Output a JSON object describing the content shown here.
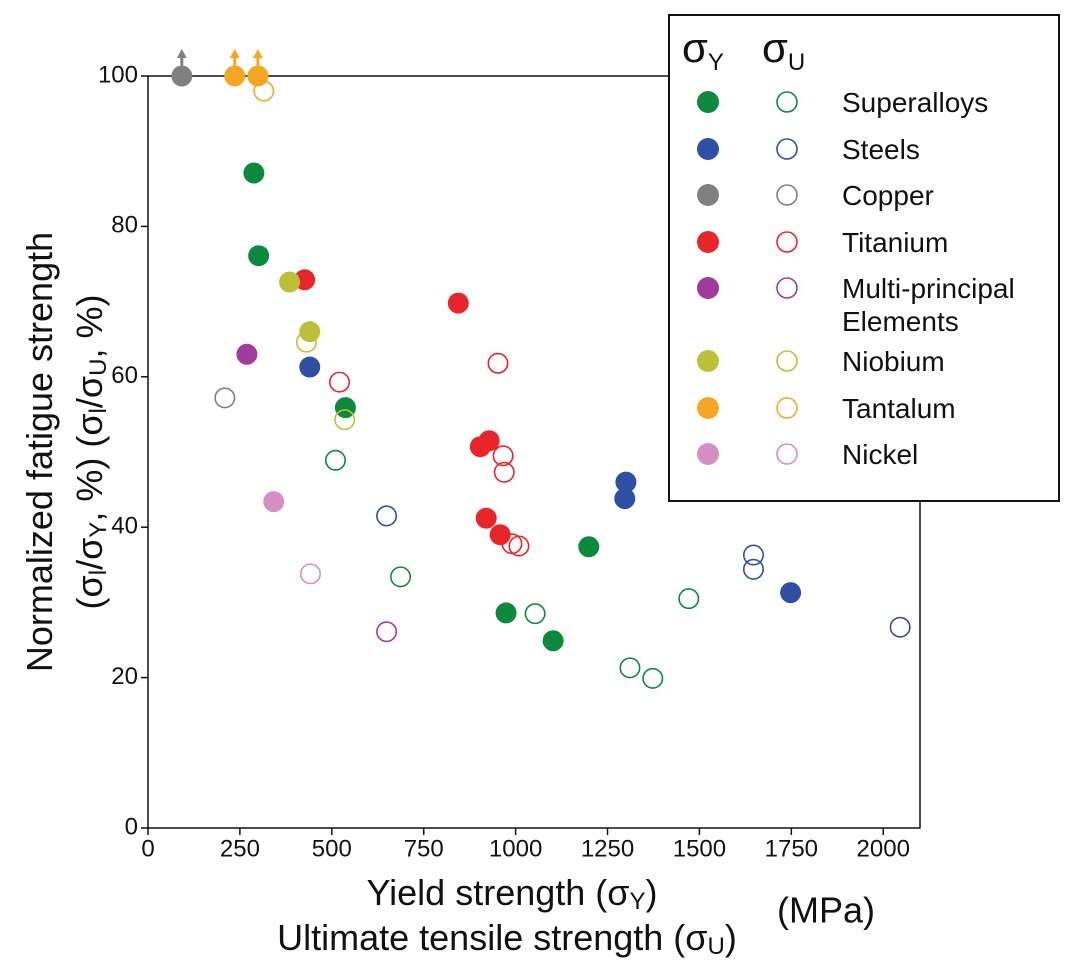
{
  "chart_data": {
    "type": "scatter",
    "x_label": [
      [
        "Yield strength (σ",
        "Y",
        ")"
      ],
      [
        "Ultimate tensile strength (σ",
        "U",
        ")"
      ]
    ],
    "x_unit": "(MPa)",
    "y_label": [
      [
        "Normalized fatigue strength"
      ],
      [
        "(σ",
        "l",
        "/σ",
        "Y",
        ", %) (σ",
        "l",
        "/σ",
        "U",
        ", %)"
      ]
    ],
    "legend_headers": [
      [
        "σ",
        "Y"
      ],
      [
        "σ",
        "U"
      ]
    ],
    "xlim": [
      0,
      2100
    ],
    "ylim": [
      0,
      100
    ],
    "xticks": [
      0,
      250,
      500,
      750,
      1000,
      1250,
      1500,
      1750,
      2000
    ],
    "yticks": [
      0,
      20,
      40,
      60,
      80,
      100
    ],
    "grid": false,
    "legend_position": "upper right",
    "series": [
      {
        "name": "Superalloys",
        "color": "#0b8a3e",
        "yield": {
          "x": [
            288,
            301,
            537,
            974,
            1102,
            1199
          ],
          "values": [
            87.1,
            76.1,
            55.9,
            28.6,
            24.9,
            37.4
          ]
        },
        "uts": {
          "x": [
            510,
            687,
            1053,
            1311,
            1373,
            1471
          ],
          "values": [
            48.9,
            33.4,
            28.5,
            21.3,
            19.9,
            30.5
          ]
        }
      },
      {
        "name": "Steels",
        "color": "#2e4fa3",
        "yield": {
          "x": [
            440,
            1300,
            1297,
            1748
          ],
          "values": [
            61.3,
            46.0,
            43.8,
            31.3
          ]
        },
        "uts": {
          "x": [
            649,
            1647,
            1647,
            2046
          ],
          "values": [
            41.5,
            36.3,
            34.4,
            26.7
          ]
        }
      },
      {
        "name": "Copper",
        "color": "#808080",
        "yield": {
          "x": [
            92
          ],
          "values": [
            100
          ]
        },
        "uts": {
          "x": [
            209
          ],
          "values": [
            57.2
          ]
        }
      },
      {
        "name": "Titanium",
        "color": "#e8262a",
        "yield": {
          "x": [
            426,
            844,
            904,
            928,
            920,
            958
          ],
          "values": [
            72.9,
            69.8,
            50.7,
            51.5,
            41.2,
            39.0
          ]
        },
        "uts": {
          "x": [
            521,
            952,
            966,
            969,
            990,
            1009
          ],
          "values": [
            59.3,
            61.8,
            49.5,
            47.3,
            37.8,
            37.5
          ]
        }
      },
      {
        "name": "Multi-principal Elements",
        "color": "#a23c9c",
        "yield": {
          "x": [
            269
          ],
          "values": [
            63.0
          ]
        },
        "uts": {
          "x": [
            649
          ],
          "values": [
            26.1
          ]
        }
      },
      {
        "name": "Niobium",
        "color": "#bdbf37",
        "yield": {
          "x": [
            385,
            440
          ],
          "values": [
            72.6,
            66.0
          ]
        },
        "uts": {
          "x": [
            431,
            535
          ],
          "values": [
            64.6,
            54.3
          ]
        }
      },
      {
        "name": "Tantalum",
        "color": "#f6a623",
        "yield": {
          "x": [
            236,
            299
          ],
          "values": [
            100,
            100
          ]
        },
        "uts": {
          "x": [
            315
          ],
          "values": [
            98.0
          ]
        }
      },
      {
        "name": "Nickel",
        "color": "#d68fc5",
        "yield": {
          "x": [
            342
          ],
          "values": [
            43.4
          ]
        },
        "uts": {
          "x": [
            442
          ],
          "values": [
            33.8
          ]
        }
      }
    ]
  }
}
